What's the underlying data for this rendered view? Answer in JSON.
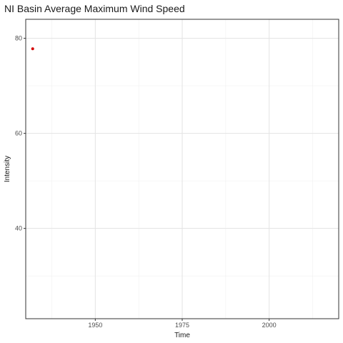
{
  "chart_data": {
    "type": "scatter",
    "title": "NI Basin Average Maximum Wind Speed",
    "xlabel": "Time",
    "ylabel": "Intensity",
    "xlim": [
      1930,
      2020
    ],
    "ylim": [
      21,
      84
    ],
    "x_ticks": [
      1950,
      1975,
      2000
    ],
    "y_ticks": [
      40,
      60,
      80
    ],
    "x_minor_gridlines": [
      1937.5,
      1962.5,
      1987.5,
      2012.5
    ],
    "y_minor_gridlines": [
      30,
      50,
      70
    ],
    "grid": true,
    "legend": "none",
    "point_color": "#d40000",
    "points": [
      {
        "x": 1932,
        "y": 77.8
      }
    ]
  }
}
